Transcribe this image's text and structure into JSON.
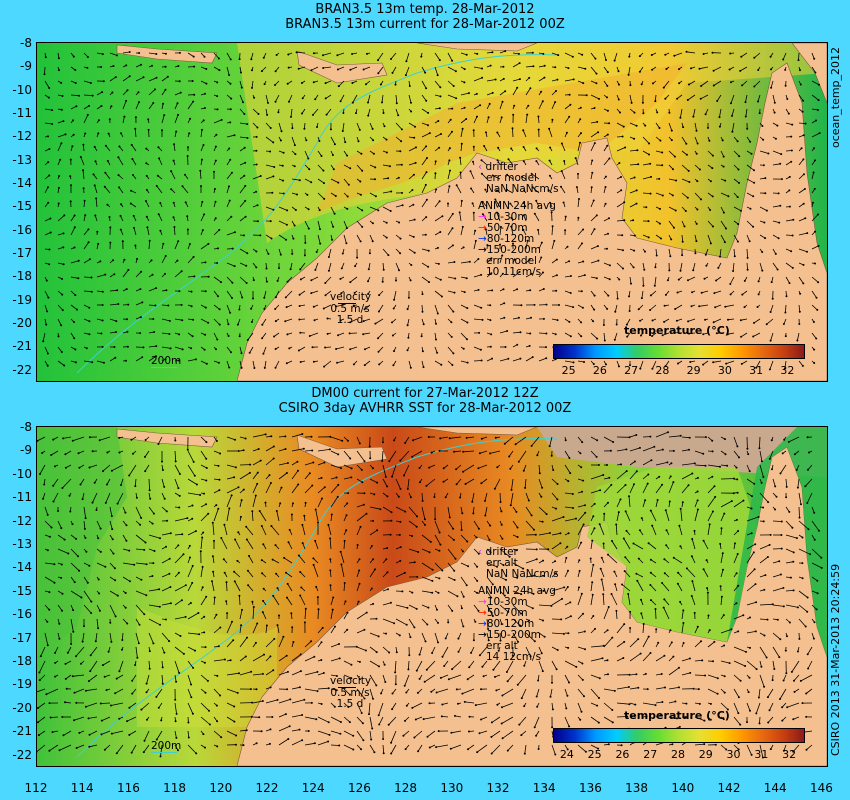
{
  "top": {
    "title1": "BRAN3.5 13m temp. 28-Mar-2012",
    "title2": "BRAN3.5 13m current for 28-Mar-2012 00Z",
    "side_label": "ocean_temp_2012",
    "legend": {
      "drifter": "drifter",
      "err1": "err model",
      "nan": "NaN NaNcm/s",
      "anmn": "ANMN 24h avg",
      "d1": "10-30m",
      "d2": "50-70m",
      "d3": "80-120m",
      "d4": "150-200m",
      "err2": "err model",
      "err_val": "10 11cm/s"
    },
    "velocity": {
      "label": "velocity",
      "speed": "0.5 m/s",
      "time": "1.5 d"
    },
    "isobath": "200m",
    "colorbar": {
      "title": "temperature (°C)",
      "ticks": [
        "25",
        "26",
        "27",
        "28",
        "29",
        "30",
        "31",
        "32"
      ]
    }
  },
  "bottom": {
    "title1": "DM00 current for 27-Mar-2012 12Z",
    "title2": "CSIRO 3day AVHRR SST for 28-Mar-2012 00Z",
    "side_label": "CSIRO 2013  31-Mar-2013 20:24:59",
    "legend": {
      "drifter": "drifter",
      "err1": "err alt",
      "nan": "NaN NaNcm/s",
      "anmn": "ANMN 24h avg",
      "d1": "10-30m",
      "d2": "50-70m",
      "d3": "80-120m",
      "d4": "150-200m",
      "err2": "err alt",
      "err_val": "14 12cm/s"
    },
    "velocity": {
      "label": "velocity",
      "speed": "0.5 m/s",
      "time": "1.5 d"
    },
    "isobath": "200m",
    "colorbar": {
      "title": "temperature (°C)",
      "ticks": [
        "24",
        "25",
        "26",
        "27",
        "28",
        "29",
        "30",
        "31",
        "32"
      ]
    }
  },
  "y_ticks": [
    "-8",
    "-9",
    "-10",
    "-11",
    "-12",
    "-13",
    "-14",
    "-15",
    "-16",
    "-17",
    "-18",
    "-19",
    "-20",
    "-21",
    "-22"
  ],
  "x_ticks": [
    "112",
    "114",
    "116",
    "118",
    "120",
    "122",
    "124",
    "126",
    "128",
    "130",
    "132",
    "134",
    "136",
    "138",
    "140",
    "142",
    "144",
    "146"
  ],
  "colors": {
    "background": "#4dd9ff",
    "land": "#f5c08f",
    "nodata": "#c8a98e",
    "depth_10_30": "#ff33ff",
    "depth_50_70": "#ff2200",
    "depth_80_120": "#0033ff",
    "depth_150_200": "#000000",
    "drifter": "#cc33ff"
  }
}
